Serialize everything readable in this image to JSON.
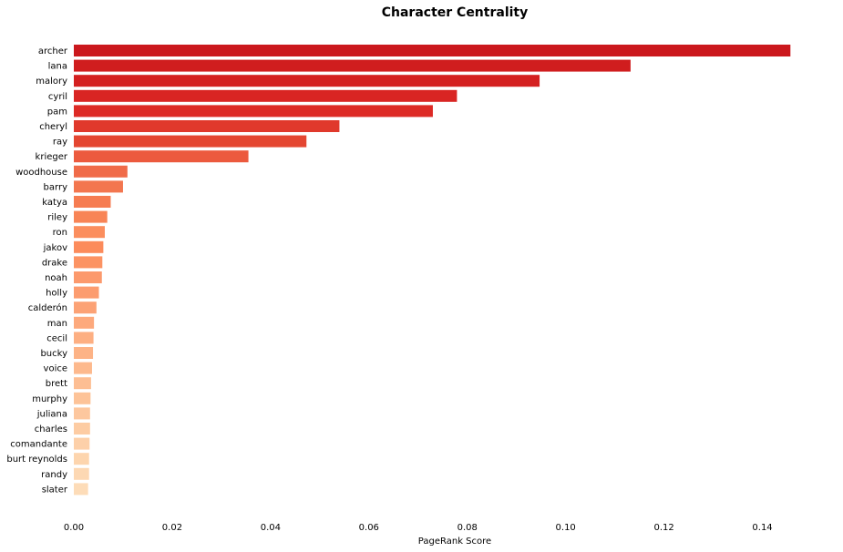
{
  "chart_data": {
    "type": "bar",
    "orientation": "horizontal",
    "title": "Character Centrality",
    "xlabel": "PageRank Score",
    "ylabel": "",
    "xlim": [
      0,
      0.1525
    ],
    "xticks": [
      "0.00",
      "0.02",
      "0.04",
      "0.06",
      "0.08",
      "0.10",
      "0.12",
      "0.14"
    ],
    "xtick_values": [
      0,
      0.02,
      0.04,
      0.06,
      0.08,
      0.1,
      0.12,
      0.14
    ],
    "grid": false,
    "legend": "none",
    "categories": [
      "archer",
      "lana",
      "malory",
      "cyril",
      "pam",
      "cheryl",
      "ray",
      "krieger",
      "woodhouse",
      "barry",
      "katya",
      "riley",
      "ron",
      "jakov",
      "drake",
      "noah",
      "holly",
      "calderón",
      "man",
      "cecil",
      "bucky",
      "voice",
      "brett",
      "murphy",
      "juliana",
      "charles",
      "comandante",
      "burt reynolds",
      "randy",
      "slater"
    ],
    "values": [
      0.1457,
      0.1132,
      0.0947,
      0.0779,
      0.073,
      0.054,
      0.0473,
      0.0355,
      0.0109,
      0.01,
      0.0075,
      0.0068,
      0.0063,
      0.006,
      0.0058,
      0.0057,
      0.0051,
      0.0046,
      0.0041,
      0.004,
      0.0039,
      0.0037,
      0.0035,
      0.0034,
      0.0033,
      0.0033,
      0.0032,
      0.0031,
      0.0031,
      0.0029
    ],
    "colors": [
      "#cb181d",
      "#d01d1e",
      "#d42020",
      "#d92523",
      "#dd2a25",
      "#e0392c",
      "#e44631",
      "#ec5a3e",
      "#f06b49",
      "#f3764f",
      "#f67c51",
      "#f88456",
      "#fb8e5e",
      "#fc8b5b",
      "#fc9363",
      "#fc996c",
      "#fc9c6f",
      "#fca275",
      "#fda97c",
      "#fdaf82",
      "#fdb386",
      "#fdb98d",
      "#fdbe93",
      "#fdc398",
      "#fdc79e",
      "#fdcca3",
      "#fdd0a9",
      "#fdd5ae",
      "#fdd8b3",
      "#fddcb8"
    ]
  }
}
